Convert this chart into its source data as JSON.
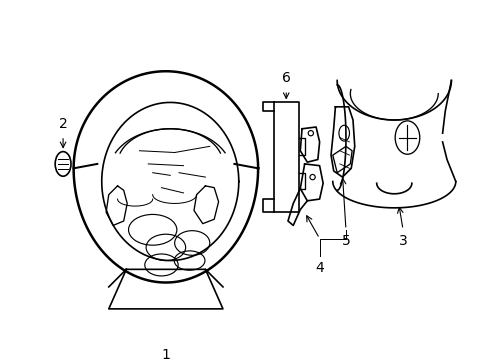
{
  "background_color": "#ffffff",
  "line_color": "#000000",
  "line_width": 1.2,
  "label_fontsize": 9,
  "fig_width": 4.89,
  "fig_height": 3.6,
  "dpi": 100
}
